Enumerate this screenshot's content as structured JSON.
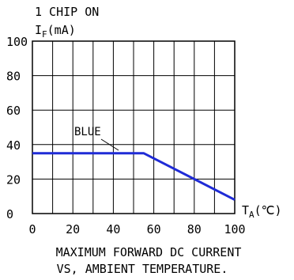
{
  "chart_data": {
    "type": "line",
    "title": "MAXIMUM FORWARD DC CURRENT VS, AMBIENT TEMPERATURE.",
    "caption": {
      "line1": "MAXIMUM FORWARD DC CURRENT",
      "line2": "VS, AMBIENT TEMPERATURE."
    },
    "note": "1 CHIP ON",
    "ylabel": {
      "main": "I",
      "sub": "F",
      "unit": "(mA)"
    },
    "xlabel": {
      "main": "T",
      "sub": "A",
      "unit": "(℃)"
    },
    "xlim": [
      0,
      100
    ],
    "ylim": [
      0,
      100
    ],
    "grid": true,
    "x_ticks": [
      "0",
      "20",
      "40",
      "60",
      "80",
      "100"
    ],
    "y_ticks": [
      "100",
      "80",
      "60",
      "40",
      "20",
      "0"
    ],
    "series": [
      {
        "name": "BLUE",
        "color": "#1f2bd6",
        "points": [
          [
            0,
            35
          ],
          [
            55,
            35
          ],
          [
            100,
            8
          ]
        ]
      }
    ]
  }
}
